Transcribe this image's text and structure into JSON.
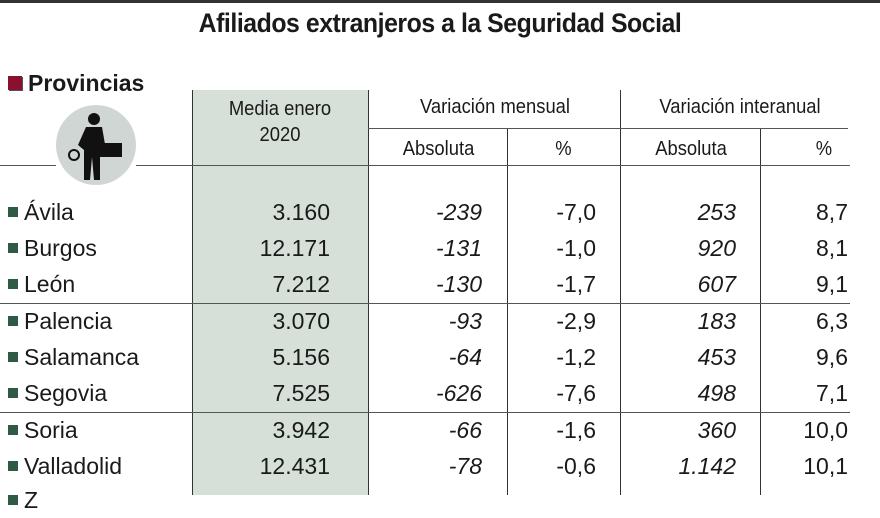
{
  "title": "Afiliados extranjeros a la Seguridad Social",
  "section_label": "Provincias",
  "headers": {
    "media": "Media enero 2020",
    "var_mensual": "Variación mensual",
    "var_interanual": "Variación interanual",
    "absoluta": "Absoluta",
    "pct": "%"
  },
  "colors": {
    "shade": "#d6dfd8",
    "bullet": "#2f5a45",
    "section_marker": "#8a1030"
  },
  "rows": [
    {
      "name": "Ávila",
      "media": "3.160",
      "m_abs": "-239",
      "m_pct": "-7,0",
      "i_abs": "253",
      "i_pct": "8,7"
    },
    {
      "name": "Burgos",
      "media": "12.171",
      "m_abs": "-131",
      "m_pct": "-1,0",
      "i_abs": "920",
      "i_pct": "8,1"
    },
    {
      "name": "León",
      "media": "7.212",
      "m_abs": "-130",
      "m_pct": "-1,7",
      "i_abs": "607",
      "i_pct": "9,1"
    },
    {
      "name": "Palencia",
      "media": "3.070",
      "m_abs": "-93",
      "m_pct": "-2,9",
      "i_abs": "183",
      "i_pct": "6,3"
    },
    {
      "name": "Salamanca",
      "media": "5.156",
      "m_abs": "-64",
      "m_pct": "-1,2",
      "i_abs": "453",
      "i_pct": "9,6"
    },
    {
      "name": "Segovia",
      "media": "7.525",
      "m_abs": "-626",
      "m_pct": "-7,6",
      "i_abs": "498",
      "i_pct": "7,1"
    },
    {
      "name": "Soria",
      "media": "3.942",
      "m_abs": "-66",
      "m_pct": "-1,6",
      "i_abs": "360",
      "i_pct": "10,0"
    },
    {
      "name": "Valladolid",
      "media": "12.431",
      "m_abs": "-78",
      "m_pct": "-0,6",
      "i_abs": "1.142",
      "i_pct": "10,1"
    }
  ]
}
